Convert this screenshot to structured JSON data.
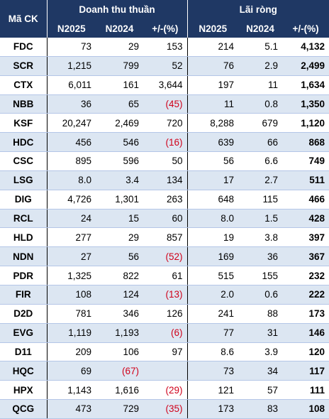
{
  "header": {
    "ticker_label": "Mã CK",
    "group1": "Doanh thu thuần",
    "group2": "Lãi ròng",
    "cols": [
      "N2025",
      "N2024",
      "+/-(%)",
      "N2025",
      "N2024",
      "+/-(%)"
    ]
  },
  "rows": [
    {
      "t": "FDC",
      "r25": "73",
      "r24": "29",
      "rc": "153",
      "p25": "214",
      "p24": "5.1",
      "pc": "4,132"
    },
    {
      "t": "SCR",
      "r25": "1,215",
      "r24": "799",
      "rc": "52",
      "p25": "76",
      "p24": "2.9",
      "pc": "2,499"
    },
    {
      "t": "CTX",
      "r25": "6,011",
      "r24": "161",
      "rc": "3,644",
      "p25": "197",
      "p24": "11",
      "pc": "1,634"
    },
    {
      "t": "NBB",
      "r25": "36",
      "r24": "65",
      "rc": "(45)",
      "p25": "11",
      "p24": "0.8",
      "pc": "1,350"
    },
    {
      "t": "KSF",
      "r25": "20,247",
      "r24": "2,469",
      "rc": "720",
      "p25": "8,288",
      "p24": "679",
      "pc": "1,120"
    },
    {
      "t": "HDC",
      "r25": "456",
      "r24": "546",
      "rc": "(16)",
      "p25": "639",
      "p24": "66",
      "pc": "868"
    },
    {
      "t": "CSC",
      "r25": "895",
      "r24": "596",
      "rc": "50",
      "p25": "56",
      "p24": "6.6",
      "pc": "749"
    },
    {
      "t": "LSG",
      "r25": "8.0",
      "r24": "3.4",
      "rc": "134",
      "p25": "17",
      "p24": "2.7",
      "pc": "511"
    },
    {
      "t": "DIG",
      "r25": "4,726",
      "r24": "1,301",
      "rc": "263",
      "p25": "648",
      "p24": "115",
      "pc": "466"
    },
    {
      "t": "RCL",
      "r25": "24",
      "r24": "15",
      "rc": "60",
      "p25": "8.0",
      "p24": "1.5",
      "pc": "428"
    },
    {
      "t": "HLD",
      "r25": "277",
      "r24": "29",
      "rc": "857",
      "p25": "19",
      "p24": "3.8",
      "pc": "397"
    },
    {
      "t": "NDN",
      "r25": "27",
      "r24": "56",
      "rc": "(52)",
      "p25": "169",
      "p24": "36",
      "pc": "367"
    },
    {
      "t": "PDR",
      "r25": "1,325",
      "r24": "822",
      "rc": "61",
      "p25": "515",
      "p24": "155",
      "pc": "232"
    },
    {
      "t": "FIR",
      "r25": "108",
      "r24": "124",
      "rc": "(13)",
      "p25": "2.0",
      "p24": "0.6",
      "pc": "222"
    },
    {
      "t": "D2D",
      "r25": "781",
      "r24": "346",
      "rc": "126",
      "p25": "241",
      "p24": "88",
      "pc": "173"
    },
    {
      "t": "EVG",
      "r25": "1,119",
      "r24": "1,193",
      "rc": "(6)",
      "p25": "77",
      "p24": "31",
      "pc": "146"
    },
    {
      "t": "D11",
      "r25": "209",
      "r24": "106",
      "rc": "97",
      "p25": "8.6",
      "p24": "3.9",
      "pc": "120"
    },
    {
      "t": "HQC",
      "r25": "69",
      "r24": "(67)",
      "rc": "",
      "p25": "73",
      "p24": "34",
      "pc": "117"
    },
    {
      "t": "HPX",
      "r25": "1,143",
      "r24": "1,616",
      "rc": "(29)",
      "p25": "121",
      "p24": "57",
      "pc": "111"
    },
    {
      "t": "QCG",
      "r25": "473",
      "r24": "729",
      "rc": "(35)",
      "p25": "173",
      "p24": "83",
      "pc": "108"
    }
  ]
}
